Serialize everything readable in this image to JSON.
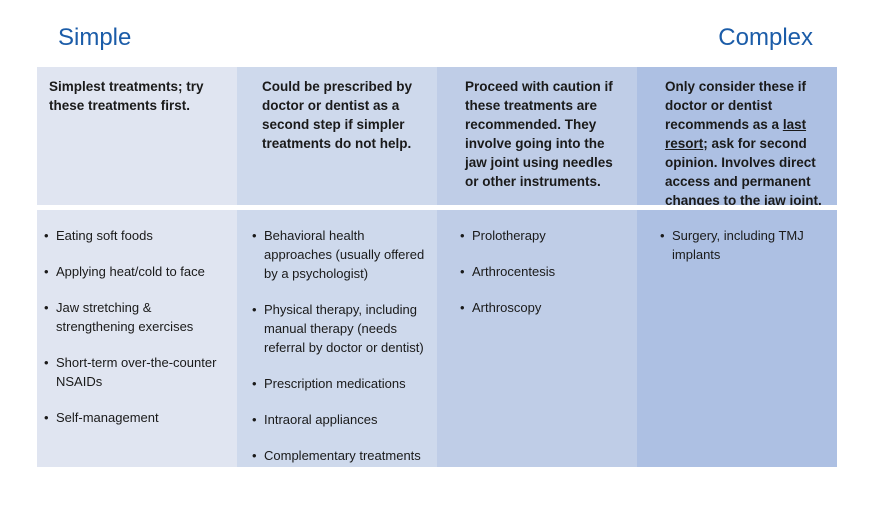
{
  "labels": {
    "left": "Simple",
    "right": "Complex"
  },
  "colors": {
    "accent": "#1b5ca8",
    "col1": "#e0e5f1",
    "col2": "#ced9ec",
    "col3": "#bfcde7",
    "col4": "#adc0e3"
  },
  "columns": [
    {
      "header": "Simplest treatments; try these treatments first.",
      "items": [
        "Eating soft foods",
        "Applying heat/cold to face",
        "Jaw stretching & strengthening exercises",
        "Short-term over-the-counter NSAIDs",
        "Self-management"
      ]
    },
    {
      "header": "Could be prescribed by doctor or dentist as a second step if simpler treatments do not help.",
      "items": [
        "Behavioral health approaches (usually offered by a psychologist)",
        "Physical therapy, including manual therapy (needs referral by doctor or dentist)",
        "Prescription medications",
        "Intraoral appliances",
        "Complementary treatments"
      ]
    },
    {
      "header": "Proceed with caution if these treatments are recommended. They involve going into the jaw joint using needles or other instruments.",
      "items": [
        "Prolotherapy",
        "Arthrocentesis",
        "Arthroscopy"
      ]
    },
    {
      "header_parts": {
        "pre": "Only consider these if doctor or dentist recommends as a ",
        "underlined": "last resort",
        "post": "; ask for second opinion. Involves direct access and permanent changes to the jaw joint."
      },
      "items": [
        "Surgery, including TMJ implants"
      ]
    }
  ]
}
